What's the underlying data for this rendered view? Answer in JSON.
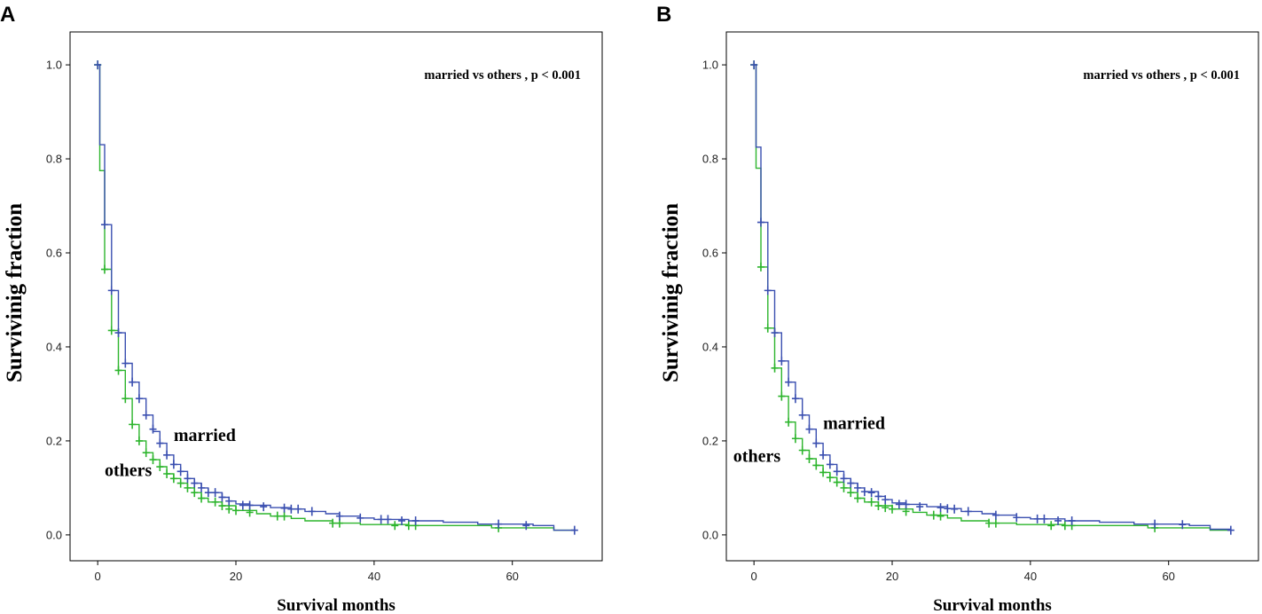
{
  "colors": {
    "married": "#3a4fb0",
    "others": "#2db52d",
    "frame": "#000000"
  },
  "chart_data": [
    {
      "type": "line",
      "panel": "A",
      "title": "",
      "xlabel": "Survival months",
      "ylabel": "Survivinig fraction",
      "xlim": [
        -4,
        73
      ],
      "ylim": [
        -0.055,
        1.07
      ],
      "xticks": [
        0,
        20,
        40,
        60
      ],
      "xtick_labels": [
        "0",
        "20",
        "40",
        "60"
      ],
      "yticks": [
        0.0,
        0.2,
        0.4,
        0.6,
        0.8,
        1.0
      ],
      "ytick_labels": [
        "0.0",
        "0.2",
        "0.4",
        "0.6",
        "0.8",
        "1.0"
      ],
      "annotation": "married vs others , p < 0.001",
      "series": [
        {
          "name": "married",
          "label_text": "married",
          "label_at": [
            11,
            0.2
          ],
          "steps": [
            [
              0,
              1.0
            ],
            [
              0.3,
              0.83
            ],
            [
              1,
              0.66
            ],
            [
              2,
              0.52
            ],
            [
              3,
              0.43
            ],
            [
              4,
              0.365
            ],
            [
              5,
              0.325
            ],
            [
              6,
              0.29
            ],
            [
              7,
              0.255
            ],
            [
              8,
              0.22
            ],
            [
              9,
              0.195
            ],
            [
              10,
              0.17
            ],
            [
              11,
              0.15
            ],
            [
              12,
              0.135
            ],
            [
              13,
              0.12
            ],
            [
              14,
              0.11
            ],
            [
              15,
              0.1
            ],
            [
              16,
              0.09
            ],
            [
              18,
              0.08
            ],
            [
              19,
              0.072
            ],
            [
              20,
              0.066
            ],
            [
              22,
              0.063
            ],
            [
              25,
              0.058
            ],
            [
              28,
              0.055
            ],
            [
              30,
              0.05
            ],
            [
              33,
              0.045
            ],
            [
              35,
              0.04
            ],
            [
              38,
              0.036
            ],
            [
              40,
              0.033
            ],
            [
              45,
              0.03
            ],
            [
              50,
              0.027
            ],
            [
              55,
              0.023
            ],
            [
              63,
              0.02
            ],
            [
              66,
              0.01
            ],
            [
              69,
              0.01
            ]
          ],
          "censored": [
            [
              0,
              1.0
            ],
            [
              1,
              0.66
            ],
            [
              2,
              0.52
            ],
            [
              3,
              0.43
            ],
            [
              4,
              0.365
            ],
            [
              5,
              0.325
            ],
            [
              6,
              0.29
            ],
            [
              7,
              0.255
            ],
            [
              8,
              0.225
            ],
            [
              9,
              0.195
            ],
            [
              10,
              0.17
            ],
            [
              11,
              0.15
            ],
            [
              12,
              0.135
            ],
            [
              13,
              0.12
            ],
            [
              14,
              0.11
            ],
            [
              15,
              0.1
            ],
            [
              16,
              0.09
            ],
            [
              17,
              0.09
            ],
            [
              18,
              0.08
            ],
            [
              19,
              0.072
            ],
            [
              21,
              0.063
            ],
            [
              22,
              0.063
            ],
            [
              24,
              0.06
            ],
            [
              27,
              0.057
            ],
            [
              28,
              0.055
            ],
            [
              29,
              0.055
            ],
            [
              31,
              0.05
            ],
            [
              35,
              0.04
            ],
            [
              38,
              0.036
            ],
            [
              41,
              0.033
            ],
            [
              42,
              0.033
            ],
            [
              44,
              0.03
            ],
            [
              46,
              0.03
            ],
            [
              58,
              0.023
            ],
            [
              62,
              0.02
            ],
            [
              69,
              0.01
            ]
          ]
        },
        {
          "name": "others",
          "label_text": "others",
          "label_at": [
            1,
            0.125
          ],
          "steps": [
            [
              0,
              1.0
            ],
            [
              0.3,
              0.775
            ],
            [
              1,
              0.565
            ],
            [
              2,
              0.435
            ],
            [
              3,
              0.35
            ],
            [
              4,
              0.29
            ],
            [
              5,
              0.235
            ],
            [
              6,
              0.2
            ],
            [
              7,
              0.175
            ],
            [
              8,
              0.16
            ],
            [
              9,
              0.145
            ],
            [
              10,
              0.13
            ],
            [
              11,
              0.12
            ],
            [
              12,
              0.11
            ],
            [
              13,
              0.1
            ],
            [
              14,
              0.09
            ],
            [
              15,
              0.078
            ],
            [
              16,
              0.07
            ],
            [
              18,
              0.062
            ],
            [
              20,
              0.052
            ],
            [
              23,
              0.045
            ],
            [
              25,
              0.04
            ],
            [
              28,
              0.035
            ],
            [
              30,
              0.03
            ],
            [
              34,
              0.025
            ],
            [
              38,
              0.022
            ],
            [
              45,
              0.02
            ],
            [
              57,
              0.015
            ],
            [
              66,
              0.01
            ],
            [
              69,
              0.01
            ]
          ],
          "censored": [
            [
              0,
              1.0
            ],
            [
              1,
              0.565
            ],
            [
              2,
              0.435
            ],
            [
              3,
              0.35
            ],
            [
              4,
              0.29
            ],
            [
              5,
              0.235
            ],
            [
              6,
              0.2
            ],
            [
              7,
              0.175
            ],
            [
              8,
              0.16
            ],
            [
              9,
              0.145
            ],
            [
              10,
              0.13
            ],
            [
              11,
              0.12
            ],
            [
              12,
              0.11
            ],
            [
              13,
              0.1
            ],
            [
              14,
              0.09
            ],
            [
              15,
              0.078
            ],
            [
              17,
              0.07
            ],
            [
              18,
              0.062
            ],
            [
              19,
              0.055
            ],
            [
              20,
              0.052
            ],
            [
              22,
              0.048
            ],
            [
              26,
              0.04
            ],
            [
              27,
              0.04
            ],
            [
              34,
              0.025
            ],
            [
              35,
              0.025
            ],
            [
              43,
              0.02
            ],
            [
              45,
              0.02
            ],
            [
              46,
              0.02
            ],
            [
              58,
              0.015
            ]
          ]
        }
      ]
    },
    {
      "type": "line",
      "panel": "B",
      "title": "",
      "xlabel": "Survival months",
      "ylabel": "Survivinig fraction",
      "xlim": [
        -4,
        73
      ],
      "ylim": [
        -0.055,
        1.07
      ],
      "xticks": [
        0,
        20,
        40,
        60
      ],
      "xtick_labels": [
        "0",
        "20",
        "40",
        "60"
      ],
      "yticks": [
        0.0,
        0.2,
        0.4,
        0.6,
        0.8,
        1.0
      ],
      "ytick_labels": [
        "0.0",
        "0.2",
        "0.4",
        "0.6",
        "0.8",
        "1.0"
      ],
      "annotation": "married vs others , p < 0.001",
      "series": [
        {
          "name": "married",
          "label_text": "married",
          "label_at": [
            10,
            0.225
          ],
          "steps": [
            [
              0,
              1.0
            ],
            [
              0.3,
              0.825
            ],
            [
              1,
              0.665
            ],
            [
              2,
              0.52
            ],
            [
              3,
              0.43
            ],
            [
              4,
              0.37
            ],
            [
              5,
              0.325
            ],
            [
              6,
              0.29
            ],
            [
              7,
              0.255
            ],
            [
              8,
              0.225
            ],
            [
              9,
              0.195
            ],
            [
              10,
              0.17
            ],
            [
              11,
              0.15
            ],
            [
              12,
              0.135
            ],
            [
              13,
              0.12
            ],
            [
              14,
              0.11
            ],
            [
              15,
              0.1
            ],
            [
              16,
              0.092
            ],
            [
              18,
              0.082
            ],
            [
              19,
              0.075
            ],
            [
              20,
              0.068
            ],
            [
              22,
              0.065
            ],
            [
              25,
              0.06
            ],
            [
              28,
              0.056
            ],
            [
              30,
              0.05
            ],
            [
              33,
              0.045
            ],
            [
              35,
              0.042
            ],
            [
              38,
              0.037
            ],
            [
              40,
              0.034
            ],
            [
              45,
              0.03
            ],
            [
              50,
              0.027
            ],
            [
              55,
              0.023
            ],
            [
              63,
              0.02
            ],
            [
              66,
              0.012
            ],
            [
              69,
              0.01
            ]
          ],
          "censored": [
            [
              0,
              1.0
            ],
            [
              1,
              0.665
            ],
            [
              2,
              0.52
            ],
            [
              3,
              0.43
            ],
            [
              4,
              0.37
            ],
            [
              5,
              0.325
            ],
            [
              6,
              0.29
            ],
            [
              7,
              0.255
            ],
            [
              8,
              0.225
            ],
            [
              9,
              0.195
            ],
            [
              10,
              0.17
            ],
            [
              11,
              0.15
            ],
            [
              12,
              0.135
            ],
            [
              13,
              0.12
            ],
            [
              14,
              0.11
            ],
            [
              15,
              0.1
            ],
            [
              16,
              0.092
            ],
            [
              17,
              0.09
            ],
            [
              18,
              0.082
            ],
            [
              19,
              0.075
            ],
            [
              21,
              0.065
            ],
            [
              22,
              0.065
            ],
            [
              24,
              0.06
            ],
            [
              27,
              0.058
            ],
            [
              28,
              0.056
            ],
            [
              29,
              0.055
            ],
            [
              31,
              0.05
            ],
            [
              35,
              0.042
            ],
            [
              38,
              0.037
            ],
            [
              41,
              0.034
            ],
            [
              42,
              0.034
            ],
            [
              44,
              0.03
            ],
            [
              46,
              0.03
            ],
            [
              58,
              0.023
            ],
            [
              62,
              0.022
            ],
            [
              69,
              0.01
            ]
          ]
        },
        {
          "name": "others",
          "label_text": "others",
          "label_at": [
            -3,
            0.155
          ],
          "steps": [
            [
              0,
              1.0
            ],
            [
              0.3,
              0.78
            ],
            [
              1,
              0.57
            ],
            [
              2,
              0.44
            ],
            [
              3,
              0.355
            ],
            [
              4,
              0.295
            ],
            [
              5,
              0.24
            ],
            [
              6,
              0.205
            ],
            [
              7,
              0.18
            ],
            [
              8,
              0.162
            ],
            [
              9,
              0.148
            ],
            [
              10,
              0.133
            ],
            [
              11,
              0.122
            ],
            [
              12,
              0.112
            ],
            [
              13,
              0.1
            ],
            [
              14,
              0.09
            ],
            [
              15,
              0.078
            ],
            [
              16,
              0.07
            ],
            [
              18,
              0.062
            ],
            [
              20,
              0.055
            ],
            [
              23,
              0.048
            ],
            [
              25,
              0.042
            ],
            [
              28,
              0.036
            ],
            [
              30,
              0.03
            ],
            [
              34,
              0.025
            ],
            [
              38,
              0.022
            ],
            [
              45,
              0.02
            ],
            [
              57,
              0.015
            ],
            [
              66,
              0.01
            ],
            [
              69,
              0.01
            ]
          ],
          "censored": [
            [
              0,
              1.0
            ],
            [
              1,
              0.57
            ],
            [
              2,
              0.44
            ],
            [
              3,
              0.355
            ],
            [
              4,
              0.295
            ],
            [
              5,
              0.24
            ],
            [
              6,
              0.205
            ],
            [
              7,
              0.18
            ],
            [
              8,
              0.162
            ],
            [
              9,
              0.148
            ],
            [
              10,
              0.133
            ],
            [
              11,
              0.122
            ],
            [
              12,
              0.112
            ],
            [
              13,
              0.1
            ],
            [
              14,
              0.09
            ],
            [
              15,
              0.078
            ],
            [
              17,
              0.07
            ],
            [
              18,
              0.062
            ],
            [
              19,
              0.058
            ],
            [
              20,
              0.055
            ],
            [
              22,
              0.05
            ],
            [
              26,
              0.042
            ],
            [
              27,
              0.04
            ],
            [
              34,
              0.025
            ],
            [
              35,
              0.025
            ],
            [
              43,
              0.02
            ],
            [
              45,
              0.02
            ],
            [
              46,
              0.02
            ],
            [
              58,
              0.015
            ]
          ]
        }
      ]
    }
  ]
}
